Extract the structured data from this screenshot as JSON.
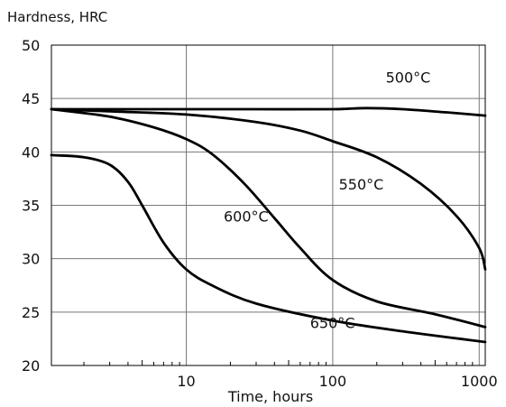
{
  "chart_data": {
    "type": "line",
    "ylabel": "Hardness, HRC",
    "xlabel": "Time, hours",
    "x_scale": "log",
    "xlim": [
      1.2,
      1100
    ],
    "ylim": [
      20,
      50
    ],
    "grid": true,
    "x_ticks": [
      {
        "value": 10,
        "label": "10"
      },
      {
        "value": 100,
        "label": "100"
      },
      {
        "value": 1000,
        "label": "1000"
      }
    ],
    "y_ticks": [
      {
        "value": 20,
        "label": "20"
      },
      {
        "value": 25,
        "label": "25"
      },
      {
        "value": 30,
        "label": "30"
      },
      {
        "value": 35,
        "label": "35"
      },
      {
        "value": 40,
        "label": "40"
      },
      {
        "value": 45,
        "label": "45"
      },
      {
        "value": 50,
        "label": "50"
      }
    ],
    "series": [
      {
        "name": "500°C",
        "label_at": {
          "x": 230,
          "y": 46.5
        },
        "x": [
          1.2,
          3,
          10,
          30,
          100,
          170,
          300,
          600,
          1100
        ],
        "y": [
          44.0,
          44.0,
          44.0,
          44.0,
          44.0,
          44.1,
          44.0,
          43.7,
          43.4
        ]
      },
      {
        "name": "550°C",
        "label_at": {
          "x": 110,
          "y": 36.5
        },
        "x": [
          1.2,
          3,
          10,
          30,
          60,
          100,
          200,
          400,
          700,
          1000,
          1100
        ],
        "y": [
          44.0,
          43.8,
          43.5,
          42.8,
          42.0,
          41.0,
          39.5,
          37.0,
          34.0,
          31.0,
          29.0
        ]
      },
      {
        "name": "600°C",
        "label_at": {
          "x": 18,
          "y": 33.5
        },
        "x": [
          1.2,
          3,
          6,
          10,
          15,
          25,
          40,
          60,
          100,
          200,
          500,
          1100
        ],
        "y": [
          44.0,
          43.3,
          42.3,
          41.2,
          39.8,
          37.0,
          33.8,
          31.0,
          28.0,
          26.0,
          24.8,
          23.6
        ]
      },
      {
        "name": "650°C",
        "label_at": {
          "x": 70,
          "y": 23.5
        },
        "x": [
          1.2,
          2,
          3,
          4,
          5,
          7,
          10,
          15,
          30,
          100,
          300,
          1100
        ],
        "y": [
          39.7,
          39.5,
          38.8,
          37.2,
          35.0,
          31.5,
          29.0,
          27.5,
          25.8,
          24.2,
          23.2,
          22.2
        ]
      }
    ]
  }
}
